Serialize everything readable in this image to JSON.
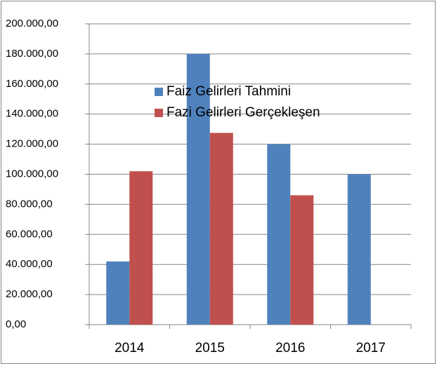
{
  "chart_data": {
    "type": "bar",
    "categories": [
      "2014",
      "2015",
      "2016",
      "2017"
    ],
    "series": [
      {
        "name": "Faiz Gelirleri Tahmini",
        "color": "#4f81bd",
        "values": [
          42000,
          180000,
          120000,
          100000
        ]
      },
      {
        "name": "Fazi Gelirleri Gerçekleşen",
        "color": "#c0504d",
        "values": [
          102000,
          127500,
          86000,
          null
        ]
      }
    ],
    "ylim": [
      0,
      200000
    ],
    "yticks": [
      {
        "value": 0,
        "label": "0,00"
      },
      {
        "value": 20000,
        "label": "20.000,00"
      },
      {
        "value": 40000,
        "label": "40.000,00"
      },
      {
        "value": 60000,
        "label": "60.000,00"
      },
      {
        "value": 80000,
        "label": "80.000,00"
      },
      {
        "value": 100000,
        "label": "100.000,00"
      },
      {
        "value": 120000,
        "label": "120.000,00"
      },
      {
        "value": 140000,
        "label": "140.000,00"
      },
      {
        "value": 160000,
        "label": "160.000,00"
      },
      {
        "value": 180000,
        "label": "180.000,00"
      },
      {
        "value": 200000,
        "label": "200.000,00"
      }
    ],
    "grid": true
  }
}
